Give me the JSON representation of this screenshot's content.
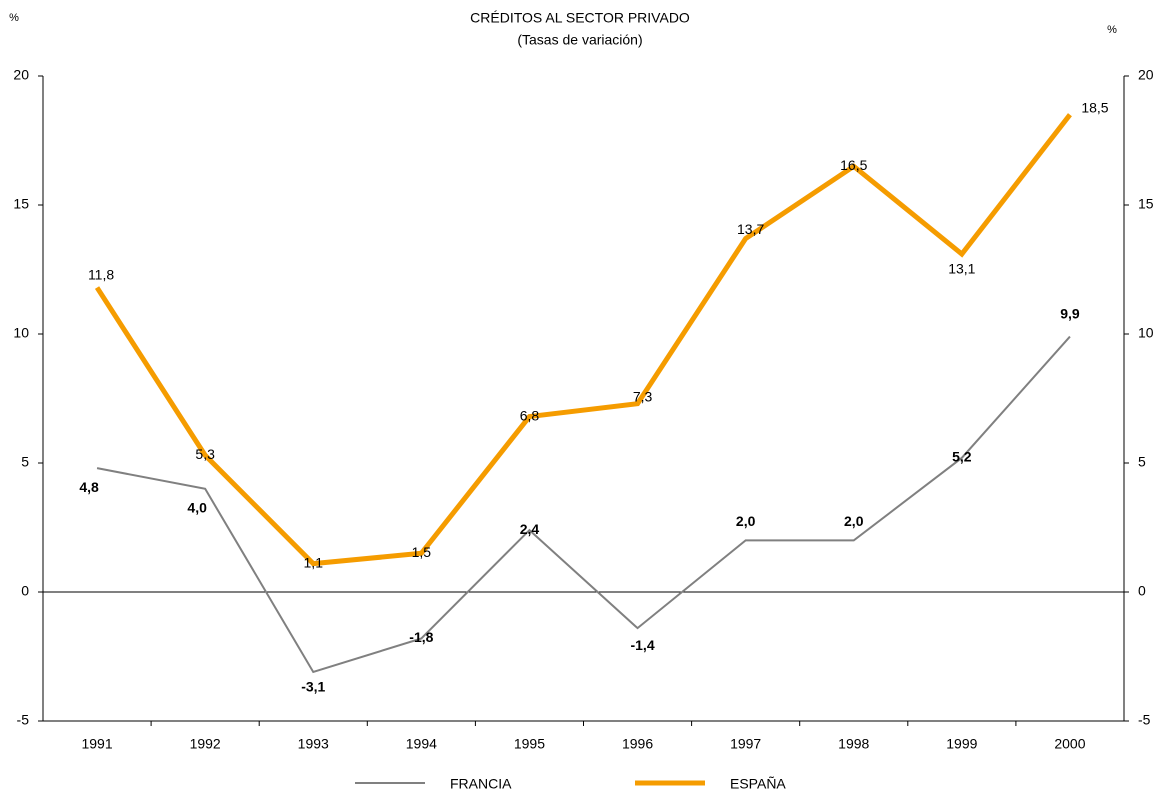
{
  "chart_data": {
    "type": "line",
    "title": "CRÉDITOS AL SECTOR PRIVADO",
    "subtitle": "(Tasas de variación)",
    "ylabel": "%",
    "y2label": "%",
    "categories": [
      "1991",
      "1992",
      "1993",
      "1994",
      "1995",
      "1996",
      "1997",
      "1998",
      "1999",
      "2000"
    ],
    "series": [
      {
        "name": "FRANCIA",
        "color": "#808080",
        "values": [
          4.8,
          4.0,
          -3.1,
          -1.8,
          2.4,
          -1.4,
          2.0,
          2.0,
          5.2,
          9.9
        ],
        "value_labels": [
          "4,8",
          "4,0",
          "-3,1",
          "-1,8",
          "2,4",
          "-1,4",
          "2,0",
          "2,0",
          "5,2",
          "9,9"
        ]
      },
      {
        "name": "ESPAÑA",
        "color": "#f59c00",
        "values": [
          11.8,
          5.3,
          1.1,
          1.5,
          6.8,
          7.3,
          13.7,
          16.5,
          13.1,
          18.5
        ],
        "value_labels": [
          "11,8",
          "5,3",
          "1,1",
          "1,5",
          "6,8",
          "7,3",
          "13,7",
          "16,5",
          "13,1",
          "18,5"
        ]
      }
    ],
    "ylim": [
      -5,
      20
    ],
    "yticks": [
      -5,
      0,
      5,
      10,
      15,
      20
    ],
    "y2lim": [
      -5,
      20
    ],
    "y2ticks": [
      -5,
      0,
      5,
      10,
      15,
      20
    ],
    "grid": false,
    "legend": "bottom"
  }
}
